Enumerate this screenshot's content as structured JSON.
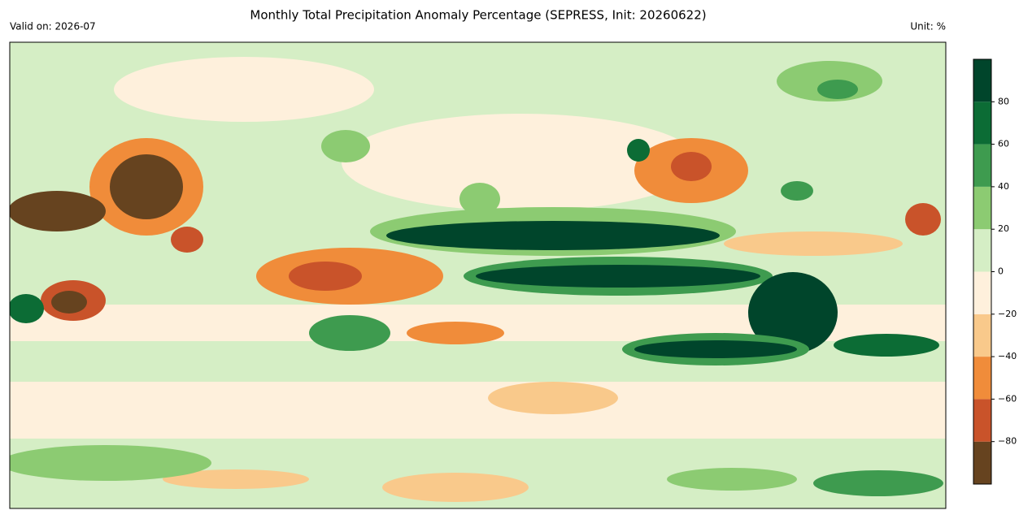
{
  "title": "Monthly Total Precipitation Anomaly Percentage (SEPRESS, Init: 20260622)",
  "valid_on": "Valid on: 2026-07",
  "unit": "Unit: %",
  "colorbar": {
    "boundaries": [
      -100,
      -80,
      -60,
      -40,
      -20,
      0,
      20,
      40,
      60,
      80,
      100
    ],
    "colors": [
      "#66431f",
      "#c9532a",
      "#f08c3a",
      "#f9c98b",
      "#fef0dc",
      "#d5eec5",
      "#8ccb72",
      "#3e9b4f",
      "#0c6c35",
      "#00452b"
    ],
    "ticks": [
      {
        "value": -80,
        "label": "−80"
      },
      {
        "value": -60,
        "label": "−60"
      },
      {
        "value": -40,
        "label": "−40"
      },
      {
        "value": -20,
        "label": "−20"
      },
      0,
      20,
      40,
      60,
      80
    ]
  }
}
